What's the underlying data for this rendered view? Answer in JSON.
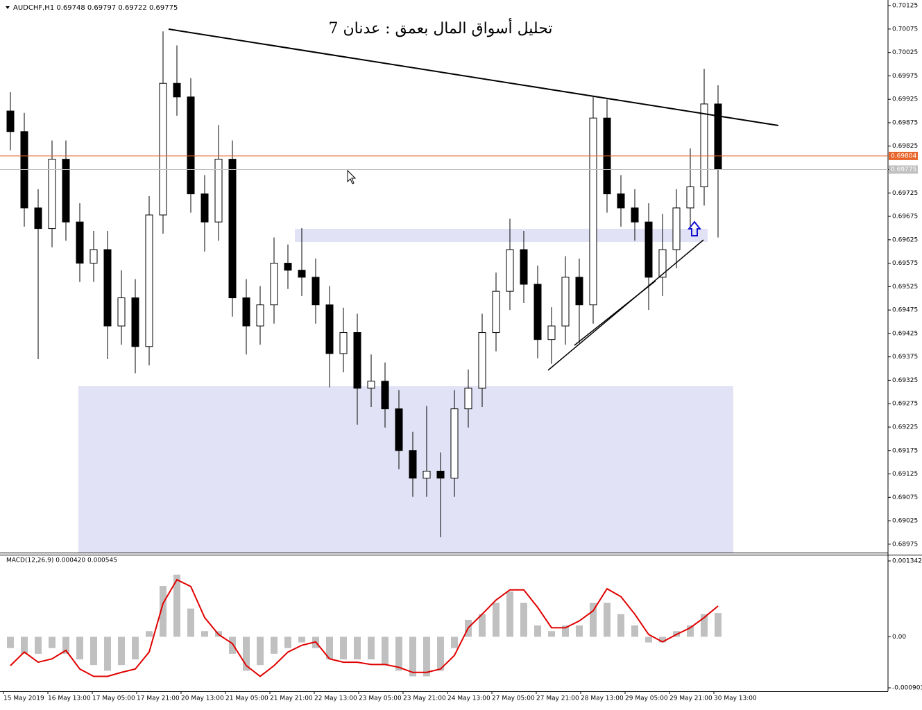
{
  "chart_data": {
    "type": "candlestick",
    "header": "AUDCHF,H1  0.69748 0.69797 0.69722 0.69775",
    "title": "تحليل أسواق المال بعمق : عدنان 7",
    "open": [
      0.699,
      0.69856,
      0.69693,
      0.69649,
      0.69797,
      0.69663,
      0.69575,
      0.69604,
      0.69441,
      0.69501,
      0.69397,
      0.69678,
      0.69959,
      0.6993,
      0.69723,
      0.69663,
      0.69797,
      0.69501,
      0.69441,
      0.69486,
      0.69575,
      0.6956,
      0.69545,
      0.69486,
      0.69382,
      0.69427,
      0.69308,
      0.69323,
      0.69264,
      0.69175,
      0.69116,
      0.69131,
      0.69116,
      0.69264,
      0.69308,
      0.69427,
      0.69515,
      0.69604,
      0.6953,
      0.69412,
      0.69441,
      0.69545,
      0.69486,
      0.69885,
      0.69723,
      0.69693,
      0.69663,
      0.69545,
      0.69604,
      0.69693,
      0.69738,
      0.69915
    ],
    "high": [
      0.6994,
      0.69896,
      0.69733,
      0.69837,
      0.69837,
      0.69703,
      0.69644,
      0.69644,
      0.6956,
      0.69541,
      0.69718,
      0.7007,
      0.7004,
      0.6997,
      0.69763,
      0.6987,
      0.69837,
      0.69541,
      0.69526,
      0.6963,
      0.69615,
      0.6965,
      0.69585,
      0.69526,
      0.6948,
      0.69467,
      0.6938,
      0.69363,
      0.69304,
      0.69215,
      0.6927,
      0.69171,
      0.69304,
      0.69348,
      0.69467,
      0.69555,
      0.6967,
      0.69644,
      0.6957,
      0.69481,
      0.6959,
      0.69585,
      0.6993,
      0.69925,
      0.69763,
      0.69733,
      0.69703,
      0.6968,
      0.69733,
      0.6982,
      0.6999,
      0.69955
    ],
    "low": [
      0.69816,
      0.69653,
      0.6937,
      0.69609,
      0.69623,
      0.69535,
      0.69535,
      0.6937,
      0.69401,
      0.6934,
      0.69357,
      0.69638,
      0.6989,
      0.69683,
      0.696,
      0.69623,
      0.69461,
      0.6938,
      0.69401,
      0.69446,
      0.6952,
      0.69505,
      0.69446,
      0.6931,
      0.69342,
      0.6923,
      0.69268,
      0.69224,
      0.69135,
      0.69076,
      0.69076,
      0.6899,
      0.69076,
      0.69224,
      0.69268,
      0.69387,
      0.69475,
      0.6949,
      0.69372,
      0.6936,
      0.69401,
      0.69405,
      0.69446,
      0.69683,
      0.69653,
      0.69623,
      0.69475,
      0.69505,
      0.69564,
      0.69653,
      0.69698,
      0.6963
    ],
    "close": [
      0.69856,
      0.69693,
      0.69649,
      0.69797,
      0.69663,
      0.69575,
      0.69604,
      0.69441,
      0.69501,
      0.69397,
      0.69678,
      0.69959,
      0.6993,
      0.69723,
      0.69663,
      0.69797,
      0.69501,
      0.69441,
      0.69486,
      0.69575,
      0.6956,
      0.69545,
      0.69486,
      0.69382,
      0.69427,
      0.69308,
      0.69323,
      0.69264,
      0.69175,
      0.69116,
      0.69131,
      0.69116,
      0.69264,
      0.69308,
      0.69427,
      0.69515,
      0.69604,
      0.6953,
      0.69412,
      0.69441,
      0.69545,
      0.69486,
      0.69885,
      0.69723,
      0.69693,
      0.69663,
      0.69545,
      0.69604,
      0.69693,
      0.69738,
      0.69915,
      0.69775
    ],
    "x_labels": [
      "15 May 2019",
      "16 May 13:00",
      "17 May 05:00",
      "17 May 21:00",
      "20 May 13:00",
      "21 May 05:00",
      "21 May 21:00",
      "22 May 13:00",
      "23 May 05:00",
      "23 May 21:00",
      "24 May 13:00",
      "27 May 05:00",
      "27 May 21:00",
      "28 May 13:00",
      "29 May 05:00",
      "29 May 21:00",
      "30 May 13:00"
    ],
    "ylim": [
      0.68957,
      0.70137
    ],
    "yticks": [
      0.70125,
      0.70075,
      0.70025,
      0.69975,
      0.69925,
      0.69875,
      0.69825,
      0.69775,
      0.69725,
      0.69675,
      0.69625,
      0.69575,
      0.69525,
      0.69475,
      0.69425,
      0.69375,
      0.69325,
      0.69275,
      0.69225,
      0.69175,
      0.69125,
      0.69075,
      0.69025,
      0.68975
    ],
    "price_lines": [
      {
        "value": 0.69804,
        "color": "#e8642a"
      },
      {
        "value": 0.69775,
        "color": "#c0c0c0"
      }
    ],
    "macd": {
      "header": "MACD(12,26,9) 0.000420 0.000545",
      "histogram_color": "#c0c0c0",
      "signal_color": "#e00000",
      "histogram": [
        -0.0002,
        -0.0003,
        -0.0003,
        -0.0002,
        -0.0003,
        -0.0004,
        -0.0005,
        -0.0006,
        -0.0005,
        -0.0004,
        0.0001,
        0.0009,
        0.0011,
        0.0005,
        0.0001,
        0.0001,
        -0.0003,
        -0.0006,
        -0.0005,
        -0.0003,
        -0.0002,
        -0.0001,
        -0.0002,
        -0.0004,
        -0.0004,
        -0.0004,
        -0.0004,
        -0.0005,
        -0.0006,
        -0.0007,
        -0.0007,
        -0.0006,
        -0.0002,
        0.0003,
        0.0004,
        0.0006,
        0.0008,
        0.0006,
        0.0002,
        0.0001,
        0.0002,
        0.0002,
        0.0006,
        0.0006,
        0.0004,
        0.0002,
        -0.0001,
        -0.0001,
        0.0001,
        0.0002,
        0.0004,
        0.00042
      ],
      "signal": [
        -0.00051,
        -0.00027,
        -0.00045,
        -0.00039,
        -0.00024,
        -0.00057,
        -0.0007,
        -0.0007,
        -0.00063,
        -0.00057,
        -0.00027,
        0.00059,
        0.00101,
        0.00089,
        0.00034,
        4e-05,
        -0.00012,
        -0.00051,
        -0.0007,
        -0.00051,
        -0.00027,
        -0.00015,
        -9e-05,
        -0.00039,
        -0.00045,
        -0.00045,
        -0.00049,
        -0.00049,
        -0.00054,
        -0.00063,
        -0.00063,
        -0.00057,
        -0.00033,
        0.00016,
        0.0004,
        0.00065,
        0.00083,
        0.00083,
        0.00052,
        0.00016,
        0.00016,
        0.00028,
        0.00046,
        0.00085,
        0.00071,
        0.0004,
        4e-05,
        -9e-05,
        4e-05,
        0.00016,
        0.00034,
        0.000545
      ],
      "ylim": [
        -0.000964,
        0.00144
      ],
      "yticks": [
        0.001342,
        {
          "value": 0,
          "label": "0.00"
        },
        -0.000903
      ]
    }
  }
}
